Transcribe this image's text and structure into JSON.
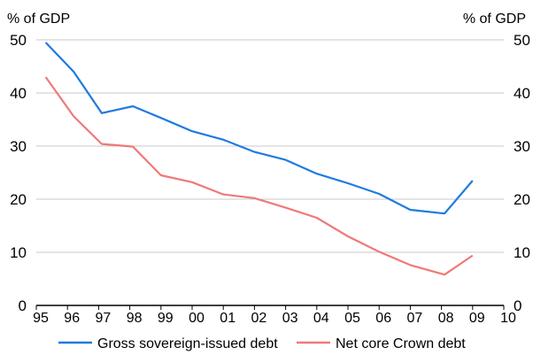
{
  "chart_data": {
    "type": "line",
    "y_unit_left": "% of GDP",
    "y_unit_right": "% of GDP",
    "ylim": [
      0,
      50
    ],
    "yticks": [
      0,
      10,
      20,
      30,
      40,
      50
    ],
    "xlim": [
      1995,
      2010
    ],
    "xticks": [
      "95",
      "96",
      "97",
      "98",
      "99",
      "00",
      "01",
      "02",
      "03",
      "04",
      "05",
      "06",
      "07",
      "08",
      "09",
      "10"
    ],
    "grid": true,
    "legend_position": "bottom",
    "series": [
      {
        "name": "Gross sovereign-issued debt",
        "color": "#1f7ae0",
        "points": [
          [
            1995.3,
            49.5
          ],
          [
            1996.2,
            44.0
          ],
          [
            1997.1,
            36.2
          ],
          [
            1998.1,
            37.5
          ],
          [
            1999.0,
            35.3
          ],
          [
            2000.0,
            32.8
          ],
          [
            2001.0,
            31.2
          ],
          [
            2002.0,
            28.9
          ],
          [
            2003.0,
            27.4
          ],
          [
            2004.0,
            24.8
          ],
          [
            2005.0,
            23.0
          ],
          [
            2006.0,
            21.0
          ],
          [
            2007.0,
            18.0
          ],
          [
            2008.1,
            17.3
          ],
          [
            2009.0,
            23.5
          ]
        ]
      },
      {
        "name": "Net core Crown debt",
        "color": "#f07878",
        "points": [
          [
            1995.3,
            43.0
          ],
          [
            1996.2,
            35.6
          ],
          [
            1997.1,
            30.4
          ],
          [
            1998.1,
            29.9
          ],
          [
            1999.0,
            24.5
          ],
          [
            2000.0,
            23.2
          ],
          [
            2001.0,
            20.9
          ],
          [
            2002.0,
            20.2
          ],
          [
            2003.0,
            18.4
          ],
          [
            2004.0,
            16.5
          ],
          [
            2005.0,
            13.0
          ],
          [
            2006.0,
            10.1
          ],
          [
            2007.0,
            7.6
          ],
          [
            2008.1,
            5.8
          ],
          [
            2009.0,
            9.4
          ]
        ]
      }
    ]
  }
}
